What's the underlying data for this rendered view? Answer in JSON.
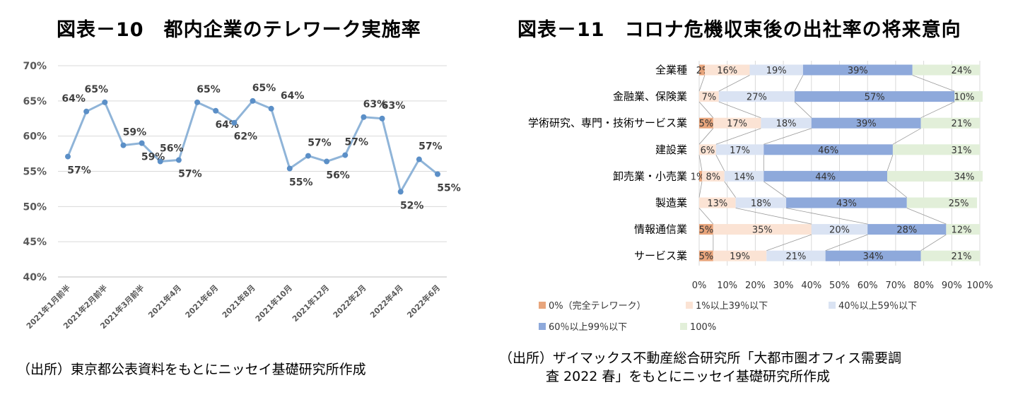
{
  "left": {
    "title": "図表－10　都内企業のテレワーク実施率",
    "source": "（出所）東京都公表資料をもとにニッセイ基礎研究所作成",
    "chart_data": {
      "type": "line",
      "series_color": "#8fb4d8",
      "y_ticks": [
        "70%",
        "65%",
        "60%",
        "55%",
        "50%",
        "45%",
        "40%"
      ],
      "ylim": [
        40,
        70
      ],
      "x_labels": [
        "2021年1月前半",
        "2021年2月前半",
        "2021年3月前半",
        "2021年4月",
        "2021年6月",
        "2021年8月",
        "2021年10月",
        "2021年12月",
        "2022年2月",
        "2022年4月",
        "2022年6月"
      ],
      "values": [
        57.1,
        63.5,
        64.8,
        58.7,
        59.0,
        56.4,
        56.6,
        64.8,
        63.6,
        61.9,
        65.0,
        63.9,
        55.4,
        57.2,
        56.4,
        57.3,
        62.7,
        62.5,
        52.1,
        56.7,
        54.6
      ],
      "labels": [
        "57%",
        "64%",
        "65%",
        "59%",
        "59%",
        "56%",
        "57%",
        "65%",
        "64%",
        "62%",
        "65%",
        "64%",
        "55%",
        "57%",
        "56%",
        "57%",
        "63%",
        "63%",
        "52%",
        "57%",
        "55%"
      ]
    }
  },
  "right": {
    "title": "図表－11　コロナ危機収束後の出社率の将来意向",
    "source_line1": "（出所）ザイマックス不動産総合研究所「大都市圏オフィス需要調",
    "source_line2": "査 2022 春」をもとにニッセイ基礎研究所作成",
    "chart_data": {
      "type": "stacked-bar-horizontal",
      "x_ticks": [
        "0%",
        "10%",
        "20%",
        "30%",
        "40%",
        "50%",
        "60%",
        "70%",
        "80%",
        "90%",
        "100%"
      ],
      "categories": [
        "全業種",
        "金融業、保険業",
        "学術研究、専門・技術サービス業",
        "建設業",
        "卸売業・小売業",
        "製造業",
        "情報通信業",
        "サービス業"
      ],
      "series": [
        {
          "name": "0%（完全テレワーク）",
          "color": "#e8a57c",
          "values": [
            2,
            0,
            5,
            0,
            1,
            0,
            5,
            5
          ],
          "labels": [
            "2%",
            "",
            "5%",
            "",
            "1%",
            "",
            "5%",
            "5%"
          ]
        },
        {
          "name": "1%以上39％以下",
          "color": "#fbe3d4",
          "values": [
            16,
            7,
            17,
            6,
            8,
            13,
            35,
            19
          ],
          "labels": [
            "16%",
            "7%",
            "17%",
            "6%",
            "8%",
            "13%",
            "35%",
            "19%"
          ]
        },
        {
          "name": "40％以上59％以下",
          "color": "#dae3f3",
          "values": [
            19,
            27,
            18,
            17,
            14,
            18,
            20,
            21
          ],
          "labels": [
            "19%",
            "27%",
            "18%",
            "17%",
            "14%",
            "18%",
            "20%",
            "21%"
          ]
        },
        {
          "name": "60％以上99％以下",
          "color": "#8ea9db",
          "values": [
            39,
            57,
            39,
            46,
            44,
            43,
            28,
            34
          ],
          "labels": [
            "39%",
            "57%",
            "39%",
            "46%",
            "44%",
            "43%",
            "28%",
            "34%"
          ]
        },
        {
          "name": "100%",
          "color": "#e2efd9",
          "values": [
            24,
            10,
            21,
            31,
            34,
            25,
            12,
            21
          ],
          "labels": [
            "24%",
            "10%",
            "21%",
            "31%",
            "34%",
            "25%",
            "12%",
            "21%"
          ]
        }
      ]
    }
  }
}
